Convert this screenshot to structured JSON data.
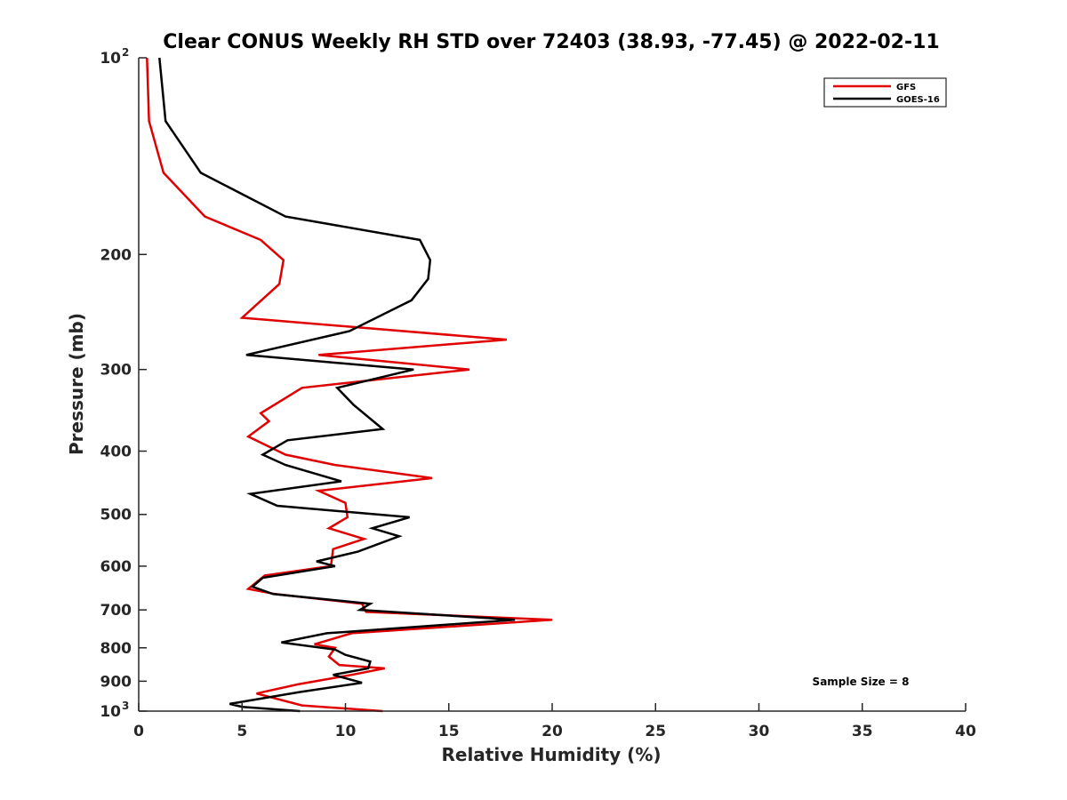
{
  "chart_data": {
    "type": "line",
    "title": "Clear CONUS Weekly RH STD over 72403 (38.93, -77.45) @ 2022-02-11",
    "xlabel": "Relative Humidity (%)",
    "ylabel": "Pressure (mb)",
    "xlim": [
      0,
      40
    ],
    "ylim": [
      100,
      1000
    ],
    "yscale": "log",
    "y_reversed": true,
    "grid": false,
    "legend_position": "top-right",
    "x_ticks": [
      "0",
      "5",
      "10",
      "15",
      "20",
      "25",
      "30",
      "35",
      "40"
    ],
    "y_ticks": [
      {
        "value": 100,
        "base": "10",
        "exp": "2"
      },
      {
        "value": 200,
        "label": "200"
      },
      {
        "value": 300,
        "label": "300"
      },
      {
        "value": 400,
        "label": "400"
      },
      {
        "value": 500,
        "label": "500"
      },
      {
        "value": 600,
        "label": "600"
      },
      {
        "value": 700,
        "label": "700"
      },
      {
        "value": 800,
        "label": "800"
      },
      {
        "value": 900,
        "label": "900"
      },
      {
        "value": 1000,
        "base": "10",
        "exp": "3"
      }
    ],
    "annotation": "Sample Size = 8",
    "series": [
      {
        "name": "GFS",
        "color": "#e00000",
        "points": [
          [
            0.4,
            100
          ],
          [
            0.5,
            125
          ],
          [
            1.2,
            150
          ],
          [
            3.2,
            175
          ],
          [
            5.9,
            190
          ],
          [
            7.0,
            204
          ],
          [
            6.8,
            222
          ],
          [
            5.0,
            250
          ],
          [
            17.8,
            270
          ],
          [
            8.7,
            285
          ],
          [
            16.0,
            300
          ],
          [
            7.9,
            320
          ],
          [
            5.9,
            350
          ],
          [
            6.3,
            360
          ],
          [
            5.3,
            380
          ],
          [
            7.1,
            405
          ],
          [
            9.5,
            420
          ],
          [
            14.2,
            440
          ],
          [
            8.7,
            460
          ],
          [
            10.0,
            480
          ],
          [
            10.1,
            505
          ],
          [
            9.2,
            525
          ],
          [
            10.9,
            545
          ],
          [
            9.4,
            565
          ],
          [
            9.3,
            600
          ],
          [
            6.1,
            620
          ],
          [
            5.3,
            650
          ],
          [
            6.6,
            662
          ],
          [
            10.8,
            685
          ],
          [
            11.0,
            705
          ],
          [
            20.0,
            725
          ],
          [
            10.3,
            760
          ],
          [
            8.5,
            790
          ],
          [
            9.5,
            800
          ],
          [
            9.2,
            825
          ],
          [
            9.7,
            850
          ],
          [
            11.9,
            860
          ],
          [
            10.3,
            880
          ],
          [
            7.7,
            910
          ],
          [
            5.7,
            940
          ],
          [
            7.9,
            980
          ],
          [
            11.8,
            1000
          ]
        ]
      },
      {
        "name": "GOES-16",
        "color": "#000000",
        "points": [
          [
            1.0,
            100
          ],
          [
            1.3,
            125
          ],
          [
            3.0,
            150
          ],
          [
            7.1,
            175
          ],
          [
            13.6,
            190
          ],
          [
            14.1,
            204
          ],
          [
            14.0,
            218
          ],
          [
            13.2,
            235
          ],
          [
            10.2,
            262
          ],
          [
            5.2,
            285
          ],
          [
            13.3,
            300
          ],
          [
            9.6,
            320
          ],
          [
            10.4,
            340
          ],
          [
            11.8,
            370
          ],
          [
            7.2,
            385
          ],
          [
            6.0,
            405
          ],
          [
            7.1,
            420
          ],
          [
            9.8,
            445
          ],
          [
            5.4,
            465
          ],
          [
            6.7,
            485
          ],
          [
            13.1,
            505
          ],
          [
            11.3,
            525
          ],
          [
            12.6,
            540
          ],
          [
            10.6,
            570
          ],
          [
            8.6,
            590
          ],
          [
            9.5,
            600
          ],
          [
            6.0,
            625
          ],
          [
            5.5,
            645
          ],
          [
            6.5,
            662
          ],
          [
            11.2,
            685
          ],
          [
            10.7,
            700
          ],
          [
            18.2,
            725
          ],
          [
            9.1,
            760
          ],
          [
            6.9,
            785
          ],
          [
            9.5,
            805
          ],
          [
            10.0,
            820
          ],
          [
            11.2,
            840
          ],
          [
            11.1,
            860
          ],
          [
            9.4,
            880
          ],
          [
            10.8,
            905
          ],
          [
            7.8,
            935
          ],
          [
            4.4,
            975
          ],
          [
            5.0,
            985
          ],
          [
            7.8,
            1000
          ]
        ]
      }
    ]
  }
}
